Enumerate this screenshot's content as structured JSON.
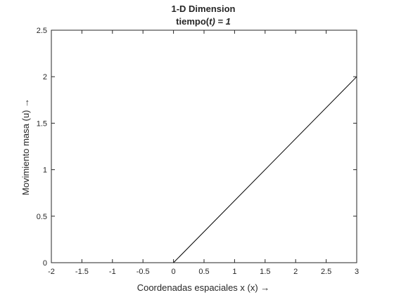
{
  "chart_data": {
    "type": "line",
    "title": "1-D Dimension",
    "subtitle": "tiempo(t) = 1",
    "subtitle_parts": [
      "tiempo(",
      "t",
      ") = ",
      "1"
    ],
    "xlabel": "Coordenadas espaciales x (x) →",
    "ylabel": "Movimiento masa (u) →",
    "xlim": [
      -2,
      3
    ],
    "ylim": [
      0,
      2.5
    ],
    "xticks": [
      -2,
      -1.5,
      -1,
      -0.5,
      0,
      0.5,
      1,
      1.5,
      2,
      2.5,
      3
    ],
    "xtick_labels": [
      "-2",
      "-1.5",
      "-1",
      "-0.5",
      "0",
      "0.5",
      "1",
      "1.5",
      "2",
      "2.5",
      "3"
    ],
    "yticks": [
      0,
      0.5,
      1,
      1.5,
      2,
      2.5
    ],
    "ytick_labels": [
      "0",
      "0.5",
      "1",
      "1.5",
      "2",
      "2.5"
    ],
    "grid": false,
    "box": true,
    "series": [
      {
        "x": [
          -2,
          0,
          3
        ],
        "y": [
          0,
          0,
          2
        ],
        "color": "#000000"
      }
    ]
  },
  "colors": {
    "axis": "#262626",
    "line": "#000000",
    "background": "#ffffff"
  }
}
